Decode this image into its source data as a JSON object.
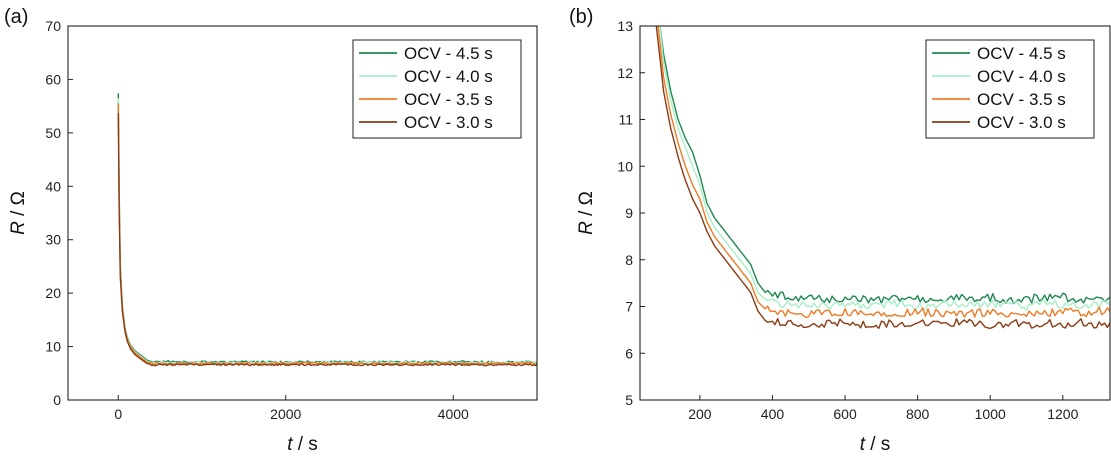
{
  "chart_data": [
    {
      "type": "line",
      "panel_label": "(a)",
      "xlabel_var": "t",
      "xlabel_unit": " / s",
      "ylabel_var": "R",
      "ylabel_unit": " / Ω",
      "xlim": [
        -600,
        5000
      ],
      "ylim": [
        0,
        70
      ],
      "xticks": [
        0,
        2000,
        4000
      ],
      "yticks": [
        0,
        10,
        20,
        30,
        40,
        50,
        60,
        70
      ],
      "legend_position": "top-right",
      "series": [
        {
          "name": "OCV - 4.5 s",
          "color": "#1e8a4e",
          "x": [
            0,
            10,
            25,
            50,
            80,
            110,
            150,
            200,
            250,
            300,
            350,
            400,
            500,
            700,
            1000,
            1500,
            2000,
            2500,
            3000,
            3500,
            4000,
            4500,
            5000
          ],
          "y": [
            57.4,
            40,
            25,
            17.5,
            13.5,
            11.6,
            10.2,
            9.2,
            8.6,
            8.0,
            7.4,
            7.2,
            7.2,
            7.15,
            7.15,
            7.15,
            7.1,
            7.15,
            7.1,
            7.1,
            7.15,
            7.1,
            7.1
          ]
        },
        {
          "name": "OCV - 4.0 s",
          "color": "#a6efc6",
          "x": [
            0,
            10,
            25,
            50,
            80,
            110,
            150,
            200,
            250,
            300,
            350,
            400,
            500,
            700,
            1000,
            1500,
            2000,
            2500,
            3000,
            3500,
            4000,
            4500,
            5000
          ],
          "y": [
            56.5,
            39,
            24.5,
            17.2,
            13.3,
            11.4,
            10.0,
            9.0,
            8.4,
            7.8,
            7.2,
            7.0,
            7.0,
            7.0,
            7.0,
            7.0,
            7.0,
            7.0,
            7.0,
            7.0,
            7.0,
            7.0,
            7.0
          ]
        },
        {
          "name": "OCV - 3.5 s",
          "color": "#f07a24",
          "x": [
            0,
            10,
            25,
            50,
            80,
            110,
            150,
            200,
            250,
            300,
            350,
            400,
            500,
            700,
            1000,
            1500,
            2000,
            2500,
            3000,
            3500,
            4000,
            4500,
            5000
          ],
          "y": [
            55.5,
            38,
            24,
            17.0,
            13.1,
            11.2,
            9.8,
            8.8,
            8.2,
            7.6,
            7.0,
            6.85,
            6.85,
            6.85,
            6.85,
            6.85,
            6.85,
            6.85,
            6.85,
            6.85,
            6.85,
            6.85,
            6.85
          ]
        },
        {
          "name": "OCV - 3.0 s",
          "color": "#8b3a14",
          "x": [
            0,
            10,
            25,
            50,
            80,
            110,
            150,
            200,
            250,
            300,
            350,
            400,
            500,
            700,
            1000,
            1500,
            2000,
            2500,
            3000,
            3500,
            4000,
            4500,
            5000
          ],
          "y": [
            53.7,
            37,
            23,
            16.5,
            12.8,
            10.9,
            9.5,
            8.5,
            7.9,
            7.3,
            6.8,
            6.6,
            6.6,
            6.65,
            6.6,
            6.65,
            6.6,
            6.65,
            6.6,
            6.6,
            6.65,
            6.6,
            6.6
          ]
        }
      ]
    },
    {
      "type": "line",
      "panel_label": "(b)",
      "xlabel_var": "t",
      "xlabel_unit": " / s",
      "ylabel_var": "R",
      "ylabel_unit": " / Ω",
      "xlim": [
        35,
        1330
      ],
      "ylim": [
        5,
        13
      ],
      "xticks": [
        200,
        400,
        600,
        800,
        1000,
        1200
      ],
      "yticks": [
        5,
        6,
        7,
        8,
        9,
        10,
        11,
        12,
        13
      ],
      "legend_position": "top-right",
      "series": [
        {
          "name": "OCV - 4.5 s",
          "color": "#1e8a4e",
          "x": [
            90,
            100,
            120,
            140,
            160,
            180,
            200,
            220,
            240,
            260,
            280,
            300,
            320,
            340,
            360,
            380,
            400,
            450,
            500,
            550,
            600,
            650,
            700,
            750,
            800,
            850,
            900,
            950,
            1000,
            1050,
            1100,
            1150,
            1200,
            1250,
            1300,
            1330
          ],
          "y": [
            13.0,
            12.4,
            11.6,
            11.0,
            10.6,
            10.3,
            9.8,
            9.2,
            8.9,
            8.7,
            8.5,
            8.3,
            8.1,
            7.9,
            7.5,
            7.3,
            7.25,
            7.2,
            7.2,
            7.15,
            7.2,
            7.15,
            7.15,
            7.2,
            7.15,
            7.15,
            7.2,
            7.15,
            7.2,
            7.15,
            7.15,
            7.2,
            7.2,
            7.15,
            7.15,
            7.2
          ]
        },
        {
          "name": "OCV - 4.0 s",
          "color": "#a6efc6",
          "x": [
            90,
            100,
            120,
            140,
            160,
            180,
            200,
            220,
            240,
            260,
            280,
            300,
            320,
            340,
            360,
            380,
            400,
            450,
            500,
            550,
            600,
            650,
            700,
            750,
            800,
            850,
            900,
            950,
            1000,
            1050,
            1100,
            1150,
            1200,
            1250,
            1300,
            1330
          ],
          "y": [
            13.0,
            12.2,
            11.4,
            10.8,
            10.4,
            10.0,
            9.6,
            9.0,
            8.7,
            8.5,
            8.3,
            8.1,
            7.9,
            7.7,
            7.3,
            7.15,
            7.1,
            7.05,
            7.05,
            7.0,
            7.05,
            7.0,
            7.05,
            7.05,
            7.0,
            7.05,
            7.05,
            7.0,
            7.05,
            7.05,
            7.0,
            7.05,
            7.05,
            7.05,
            7.05,
            7.05
          ]
        },
        {
          "name": "OCV - 3.5 s",
          "color": "#f07a24",
          "x": [
            85,
            100,
            120,
            140,
            160,
            180,
            200,
            220,
            240,
            260,
            280,
            300,
            320,
            340,
            360,
            380,
            400,
            450,
            500,
            550,
            600,
            650,
            700,
            750,
            800,
            850,
            900,
            950,
            1000,
            1050,
            1100,
            1150,
            1200,
            1250,
            1300,
            1330
          ],
          "y": [
            13.0,
            11.9,
            11.1,
            10.5,
            10.0,
            9.6,
            9.3,
            8.8,
            8.5,
            8.3,
            8.1,
            7.9,
            7.7,
            7.5,
            7.1,
            6.95,
            6.9,
            6.85,
            6.85,
            6.85,
            6.9,
            6.85,
            6.85,
            6.85,
            6.9,
            6.85,
            6.85,
            6.85,
            6.9,
            6.85,
            6.85,
            6.85,
            6.9,
            6.85,
            6.9,
            6.9
          ]
        },
        {
          "name": "OCV - 3.0 s",
          "color": "#8b3a14",
          "x": [
            80,
            100,
            120,
            140,
            160,
            180,
            200,
            220,
            240,
            260,
            280,
            300,
            320,
            340,
            360,
            380,
            400,
            450,
            500,
            550,
            600,
            650,
            700,
            750,
            800,
            850,
            900,
            950,
            1000,
            1050,
            1100,
            1150,
            1200,
            1250,
            1300,
            1330
          ],
          "y": [
            13.0,
            11.6,
            10.8,
            10.2,
            9.7,
            9.3,
            9.0,
            8.6,
            8.3,
            8.1,
            7.9,
            7.7,
            7.5,
            7.3,
            6.9,
            6.7,
            6.65,
            6.65,
            6.6,
            6.65,
            6.65,
            6.6,
            6.6,
            6.65,
            6.65,
            6.6,
            6.65,
            6.65,
            6.6,
            6.65,
            6.6,
            6.65,
            6.6,
            6.65,
            6.6,
            6.65
          ]
        }
      ]
    }
  ]
}
